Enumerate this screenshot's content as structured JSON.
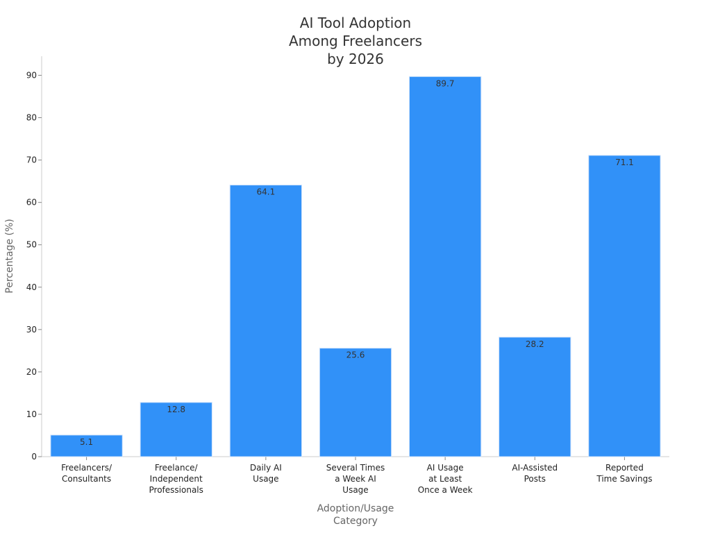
{
  "chart_data": {
    "type": "bar",
    "title_lines": [
      "AI Tool Adoption",
      "Among Freelancers",
      "by 2026"
    ],
    "categories": [
      [
        "Freelancers/",
        "Consultants"
      ],
      [
        "Freelance/",
        "Independent",
        "Professionals"
      ],
      [
        "Daily AI",
        "Usage"
      ],
      [
        "Several Times",
        "a Week AI",
        "Usage"
      ],
      [
        "AI Usage",
        "at Least",
        "Once a Week"
      ],
      [
        "AI-Assisted",
        "Posts"
      ],
      [
        "Reported",
        "Time Savings"
      ]
    ],
    "values": [
      5.1,
      12.8,
      64.1,
      25.6,
      89.7,
      28.2,
      71.1
    ],
    "data_labels": [
      "5.1",
      "12.8",
      "64.1",
      "25.6",
      "89.7",
      "28.2",
      "71.1"
    ],
    "xlabel_lines": [
      "Adoption/Usage",
      "Category"
    ],
    "ylabel": "Percentage (%)",
    "ylim": [
      0,
      94.5
    ],
    "yticks": [
      0,
      10,
      20,
      30,
      40,
      50,
      60,
      70,
      80,
      90
    ],
    "grid": false,
    "legend": "none",
    "bar_color": "#3191f8"
  }
}
